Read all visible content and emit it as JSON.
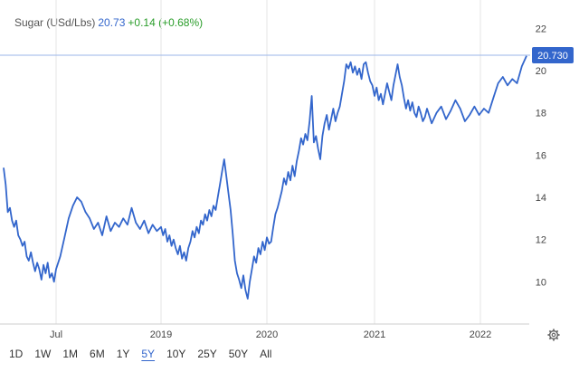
{
  "header": {
    "instrument": "Sugar (USd/Lbs)",
    "price": "20.73",
    "change": "+0.14 (+0.68%)"
  },
  "timeframes": [
    "1D",
    "1W",
    "1M",
    "6M",
    "1Y",
    "5Y",
    "10Y",
    "25Y",
    "50Y",
    "All"
  ],
  "active_timeframe": "5Y",
  "colors": {
    "line": "#3366cc",
    "price_label_bg": "#3366cc",
    "change": "#2a9d2a"
  },
  "icons": {
    "settings": "gear-icon"
  },
  "chart_data": {
    "type": "line",
    "title": "",
    "xlabel": "",
    "ylabel": "",
    "x_tick_labels": [
      "Jul",
      "2019",
      "2020",
      "2021",
      "2022"
    ],
    "y_tick_labels": [
      "10",
      "12",
      "14",
      "16",
      "18",
      "20",
      "22"
    ],
    "ylim": [
      8.0,
      23.0
    ],
    "last_price_label": "20.730",
    "last_price": 20.73,
    "grid": "vertical",
    "series": [
      {
        "values": [
          [
            2018.0,
            15.4
          ],
          [
            2018.02,
            14.6
          ],
          [
            2018.04,
            13.3
          ],
          [
            2018.06,
            13.5
          ],
          [
            2018.08,
            12.9
          ],
          [
            2018.1,
            12.6
          ],
          [
            2018.12,
            12.9
          ],
          [
            2018.14,
            12.2
          ],
          [
            2018.16,
            12.0
          ],
          [
            2018.18,
            11.7
          ],
          [
            2018.2,
            11.9
          ],
          [
            2018.22,
            11.2
          ],
          [
            2018.24,
            11.0
          ],
          [
            2018.26,
            11.4
          ],
          [
            2018.28,
            10.9
          ],
          [
            2018.3,
            10.5
          ],
          [
            2018.32,
            10.9
          ],
          [
            2018.34,
            10.6
          ],
          [
            2018.36,
            10.1
          ],
          [
            2018.38,
            10.8
          ],
          [
            2018.4,
            10.4
          ],
          [
            2018.42,
            10.9
          ],
          [
            2018.44,
            10.2
          ],
          [
            2018.46,
            10.4
          ],
          [
            2018.48,
            10.0
          ],
          [
            2018.5,
            10.6
          ],
          [
            2018.52,
            11.2
          ],
          [
            2018.54,
            12.1
          ],
          [
            2018.56,
            13.0
          ],
          [
            2018.58,
            13.6
          ],
          [
            2018.6,
            14.0
          ],
          [
            2018.62,
            13.8
          ],
          [
            2018.64,
            13.3
          ],
          [
            2018.66,
            13.0
          ],
          [
            2018.68,
            12.5
          ],
          [
            2018.7,
            12.8
          ],
          [
            2018.72,
            12.2
          ],
          [
            2018.74,
            13.1
          ],
          [
            2018.76,
            12.4
          ],
          [
            2018.78,
            12.8
          ],
          [
            2018.8,
            12.6
          ],
          [
            2018.82,
            13.0
          ],
          [
            2018.84,
            12.7
          ],
          [
            2018.86,
            13.5
          ],
          [
            2018.88,
            12.8
          ],
          [
            2018.9,
            12.5
          ],
          [
            2018.92,
            12.9
          ],
          [
            2018.94,
            12.3
          ],
          [
            2018.96,
            12.7
          ],
          [
            2018.98,
            12.4
          ],
          [
            2019.0,
            12.6
          ],
          [
            2019.02,
            12.2
          ],
          [
            2019.04,
            12.5
          ],
          [
            2019.06,
            11.9
          ],
          [
            2019.08,
            12.2
          ],
          [
            2019.1,
            11.7
          ],
          [
            2019.12,
            12.0
          ],
          [
            2019.14,
            11.6
          ],
          [
            2019.16,
            11.3
          ],
          [
            2019.18,
            11.7
          ],
          [
            2019.2,
            11.1
          ],
          [
            2019.22,
            11.4
          ],
          [
            2019.24,
            11.0
          ],
          [
            2019.26,
            11.6
          ],
          [
            2019.28,
            11.9
          ],
          [
            2019.3,
            12.4
          ],
          [
            2019.32,
            12.1
          ],
          [
            2019.34,
            12.6
          ],
          [
            2019.36,
            12.3
          ],
          [
            2019.38,
            12.9
          ],
          [
            2019.4,
            12.7
          ],
          [
            2019.42,
            13.2
          ],
          [
            2019.44,
            12.9
          ],
          [
            2019.46,
            13.4
          ],
          [
            2019.48,
            13.1
          ],
          [
            2019.5,
            13.6
          ],
          [
            2019.52,
            13.4
          ],
          [
            2019.54,
            14.0
          ],
          [
            2019.56,
            14.6
          ],
          [
            2019.58,
            15.2
          ],
          [
            2019.6,
            15.8
          ],
          [
            2019.62,
            15.0
          ],
          [
            2019.64,
            14.2
          ],
          [
            2019.66,
            13.4
          ],
          [
            2019.68,
            12.3
          ],
          [
            2019.7,
            11.0
          ],
          [
            2019.72,
            10.4
          ],
          [
            2019.74,
            10.1
          ],
          [
            2019.76,
            9.7
          ],
          [
            2019.78,
            10.3
          ],
          [
            2019.8,
            9.6
          ],
          [
            2019.82,
            9.2
          ],
          [
            2019.84,
            10.0
          ],
          [
            2019.86,
            10.6
          ],
          [
            2019.88,
            11.2
          ],
          [
            2019.9,
            10.9
          ],
          [
            2019.92,
            11.6
          ],
          [
            2019.94,
            11.3
          ],
          [
            2019.96,
            11.9
          ],
          [
            2019.98,
            11.5
          ],
          [
            2020.0,
            12.1
          ],
          [
            2020.02,
            11.8
          ],
          [
            2020.04,
            11.9
          ],
          [
            2020.06,
            12.6
          ],
          [
            2020.08,
            13.2
          ],
          [
            2020.1,
            13.5
          ],
          [
            2020.12,
            13.9
          ],
          [
            2020.14,
            14.3
          ],
          [
            2020.16,
            14.9
          ],
          [
            2020.18,
            14.6
          ],
          [
            2020.2,
            15.2
          ],
          [
            2020.22,
            14.8
          ],
          [
            2020.24,
            15.5
          ],
          [
            2020.26,
            15.0
          ],
          [
            2020.28,
            15.7
          ],
          [
            2020.3,
            16.2
          ],
          [
            2020.32,
            16.8
          ],
          [
            2020.34,
            16.5
          ],
          [
            2020.36,
            17.0
          ],
          [
            2020.38,
            16.7
          ],
          [
            2020.4,
            17.6
          ],
          [
            2020.42,
            18.8
          ],
          [
            2020.44,
            16.6
          ],
          [
            2020.46,
            16.9
          ],
          [
            2020.48,
            16.3
          ],
          [
            2020.5,
            15.8
          ],
          [
            2020.52,
            16.9
          ],
          [
            2020.54,
            17.5
          ],
          [
            2020.56,
            17.9
          ],
          [
            2020.58,
            17.2
          ],
          [
            2020.6,
            17.7
          ],
          [
            2020.62,
            18.2
          ],
          [
            2020.64,
            17.6
          ],
          [
            2020.66,
            18.0
          ],
          [
            2020.68,
            18.3
          ],
          [
            2020.7,
            18.9
          ],
          [
            2020.72,
            19.5
          ],
          [
            2020.74,
            20.3
          ],
          [
            2020.76,
            20.1
          ],
          [
            2020.78,
            20.4
          ],
          [
            2020.8,
            19.9
          ],
          [
            2020.82,
            20.2
          ],
          [
            2020.84,
            19.8
          ],
          [
            2020.86,
            20.1
          ],
          [
            2020.88,
            19.6
          ],
          [
            2020.9,
            20.3
          ],
          [
            2020.92,
            20.4
          ],
          [
            2020.94,
            19.9
          ],
          [
            2020.96,
            19.5
          ],
          [
            2020.98,
            19.3
          ],
          [
            2021.0,
            18.8
          ],
          [
            2021.02,
            19.2
          ],
          [
            2021.04,
            18.6
          ],
          [
            2021.06,
            18.9
          ],
          [
            2021.08,
            18.4
          ],
          [
            2021.1,
            18.9
          ],
          [
            2021.12,
            19.4
          ],
          [
            2021.14,
            19.0
          ],
          [
            2021.16,
            18.6
          ],
          [
            2021.18,
            19.3
          ],
          [
            2021.2,
            19.8
          ],
          [
            2021.22,
            20.3
          ],
          [
            2021.24,
            19.7
          ],
          [
            2021.26,
            19.3
          ],
          [
            2021.28,
            18.7
          ],
          [
            2021.3,
            18.2
          ],
          [
            2021.32,
            18.6
          ],
          [
            2021.34,
            18.1
          ],
          [
            2021.36,
            18.5
          ],
          [
            2021.38,
            18.0
          ],
          [
            2021.4,
            17.8
          ],
          [
            2021.42,
            18.3
          ],
          [
            2021.44,
            18.0
          ],
          [
            2021.46,
            17.6
          ],
          [
            2021.48,
            17.8
          ],
          [
            2021.5,
            18.2
          ],
          [
            2021.52,
            17.5
          ],
          [
            2021.54,
            18.0
          ],
          [
            2021.56,
            18.3
          ],
          [
            2021.58,
            17.7
          ],
          [
            2021.6,
            18.1
          ],
          [
            2021.62,
            18.6
          ],
          [
            2021.64,
            18.2
          ],
          [
            2021.66,
            17.6
          ],
          [
            2021.68,
            17.9
          ],
          [
            2021.7,
            18.3
          ],
          [
            2021.72,
            17.9
          ],
          [
            2021.74,
            18.2
          ],
          [
            2021.76,
            18.0
          ],
          [
            2021.78,
            18.7
          ],
          [
            2021.8,
            19.4
          ],
          [
            2021.82,
            19.7
          ],
          [
            2021.84,
            19.3
          ],
          [
            2021.86,
            19.6
          ],
          [
            2021.88,
            19.4
          ],
          [
            2021.9,
            20.2
          ],
          [
            2021.92,
            20.7
          ]
        ]
      }
    ]
  }
}
